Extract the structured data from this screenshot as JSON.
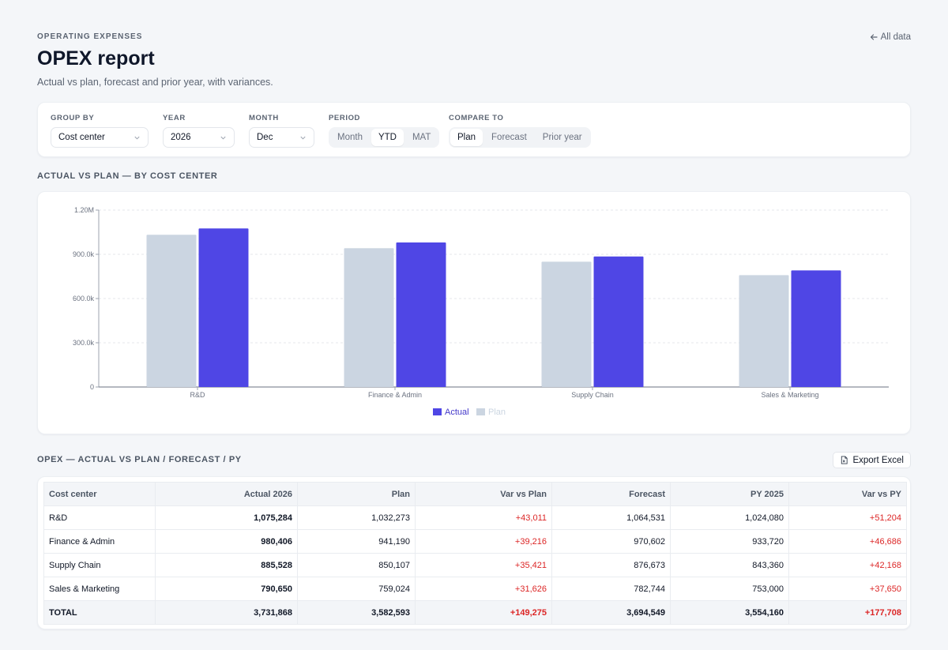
{
  "header": {
    "eyebrow": "OPERATING EXPENSES",
    "title": "OPEX report",
    "subtitle": "Actual vs plan, forecast and prior year, with variances.",
    "back_link": "All data"
  },
  "filters": {
    "group_by": {
      "label": "GROUP BY",
      "value": "Cost center"
    },
    "year": {
      "label": "YEAR",
      "value": "2026"
    },
    "month": {
      "label": "MONTH",
      "value": "Dec"
    },
    "period": {
      "label": "PERIOD",
      "options": [
        "Month",
        "YTD",
        "MAT"
      ],
      "selected": "YTD"
    },
    "compare_to": {
      "label": "COMPARE TO",
      "options": [
        "Plan",
        "Forecast",
        "Prior year"
      ],
      "selected": "Plan"
    }
  },
  "chart_section": {
    "title": "ACTUAL VS PLAN — BY COST CENTER"
  },
  "chart_data": {
    "type": "bar",
    "categories": [
      "R&D",
      "Finance & Admin",
      "Supply Chain",
      "Sales & Marketing"
    ],
    "series": [
      {
        "name": "Plan",
        "values": [
          1032273,
          941190,
          850107,
          759024
        ],
        "color": "#cbd5e1"
      },
      {
        "name": "Actual",
        "values": [
          1075284,
          980406,
          885528,
          790650
        ],
        "color": "#4f46e5"
      }
    ],
    "ylim": [
      0,
      1200000
    ],
    "yticks": [
      0,
      300000,
      600000,
      900000,
      1200000
    ],
    "ytick_labels": [
      "0",
      "300.0k",
      "600.0k",
      "900.0k",
      "1.20M"
    ],
    "legend": [
      "Actual",
      "Plan"
    ],
    "legend_position": "bottom",
    "grid": true
  },
  "table_section": {
    "title": "OPEX — ACTUAL VS PLAN / FORECAST / PY",
    "export_label": "Export Excel"
  },
  "table": {
    "columns": [
      "Cost center",
      "Actual 2026",
      "Plan",
      "Var vs Plan",
      "Forecast",
      "PY 2025",
      "Var vs PY"
    ],
    "rows": [
      [
        "R&D",
        "1,075,284",
        "1,032,273",
        "+43,011",
        "1,064,531",
        "1,024,080",
        "+51,204"
      ],
      [
        "Finance & Admin",
        "980,406",
        "941,190",
        "+39,216",
        "970,602",
        "933,720",
        "+46,686"
      ],
      [
        "Supply Chain",
        "885,528",
        "850,107",
        "+35,421",
        "876,673",
        "843,360",
        "+42,168"
      ],
      [
        "Sales & Marketing",
        "790,650",
        "759,024",
        "+31,626",
        "782,744",
        "753,000",
        "+37,650"
      ]
    ],
    "total": [
      "TOTAL",
      "3,731,868",
      "3,582,593",
      "+149,275",
      "3,694,549",
      "3,554,160",
      "+177,708"
    ]
  }
}
